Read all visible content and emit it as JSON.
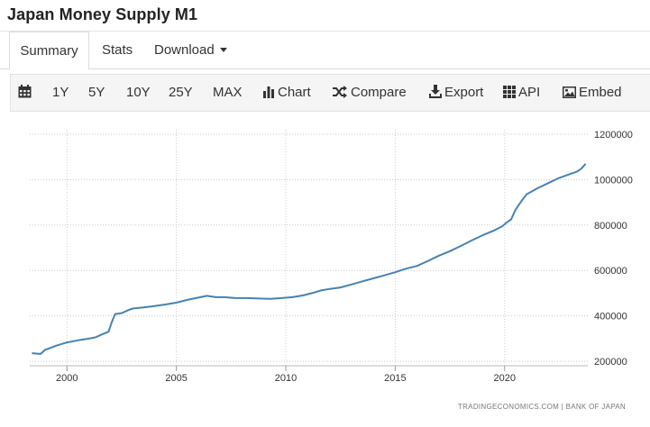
{
  "page": {
    "title": "Japan Money Supply M1"
  },
  "tabs": [
    {
      "label": "Summary",
      "active": true
    },
    {
      "label": "Stats",
      "active": false
    },
    {
      "label": "Download",
      "active": false
    }
  ],
  "toolbar": {
    "calendar_icon": "calendar-icon",
    "ranges": [
      "1Y",
      "5Y",
      "10Y",
      "25Y",
      "MAX"
    ],
    "chart_label": "Chart",
    "compare_label": "Compare",
    "export_label": "Export",
    "api_label": "API",
    "embed_label": "Embed"
  },
  "colors": {
    "line": "#4682b4",
    "grid": "#cccccc",
    "text": "#333333"
  },
  "chart_data": {
    "type": "line",
    "title": "",
    "xlabel": "",
    "ylabel": "",
    "xlim": [
      1998.3,
      2023.8
    ],
    "ylim": [
      180000,
      1220000
    ],
    "x_ticks": [
      "2000",
      "2005",
      "2010",
      "2015",
      "2020"
    ],
    "y_ticks": [
      "200000",
      "400000",
      "600000",
      "800000",
      "1000000",
      "1200000"
    ],
    "grid": true,
    "y_axis_position": "right",
    "source": "TRADINGECONOMICS.COM  |  BANK OF JAPAN",
    "series": [
      {
        "x": [
          1998.4,
          1998.8,
          1999.0,
          1999.5,
          2000.0,
          2000.5,
          2000.9,
          2001.3,
          2001.6,
          2001.9,
          2002.05,
          2002.2,
          2002.5,
          2002.8,
          2003.0,
          2003.5,
          2004.0,
          2004.5,
          2005.0,
          2005.5,
          2006.0,
          2006.4,
          2006.8,
          2007.2,
          2007.7,
          2008.2,
          2008.8,
          2009.3,
          2009.8,
          2010.3,
          2010.8,
          2011.2,
          2011.6,
          2012.0,
          2012.5,
          2013.0,
          2013.5,
          2014.0,
          2014.5,
          2015.0,
          2015.5,
          2016.0,
          2016.5,
          2017.0,
          2017.5,
          2018.0,
          2018.5,
          2019.0,
          2019.5,
          2019.9,
          2020.1,
          2020.3,
          2020.5,
          2020.8,
          2021.0,
          2021.5,
          2022.0,
          2022.5,
          2023.0,
          2023.3,
          2023.5,
          2023.7
        ],
        "y": [
          235000,
          232000,
          250000,
          268000,
          283000,
          292000,
          298000,
          305000,
          318000,
          330000,
          372000,
          408000,
          412000,
          425000,
          432000,
          437000,
          443000,
          450000,
          458000,
          470000,
          480000,
          488000,
          482000,
          482000,
          478000,
          478000,
          476000,
          475000,
          478000,
          482000,
          490000,
          500000,
          512000,
          518000,
          525000,
          538000,
          552000,
          565000,
          578000,
          592000,
          608000,
          620000,
          642000,
          665000,
          685000,
          708000,
          732000,
          755000,
          775000,
          795000,
          812000,
          825000,
          868000,
          910000,
          935000,
          962000,
          985000,
          1008000,
          1025000,
          1035000,
          1048000,
          1070000
        ]
      }
    ]
  }
}
